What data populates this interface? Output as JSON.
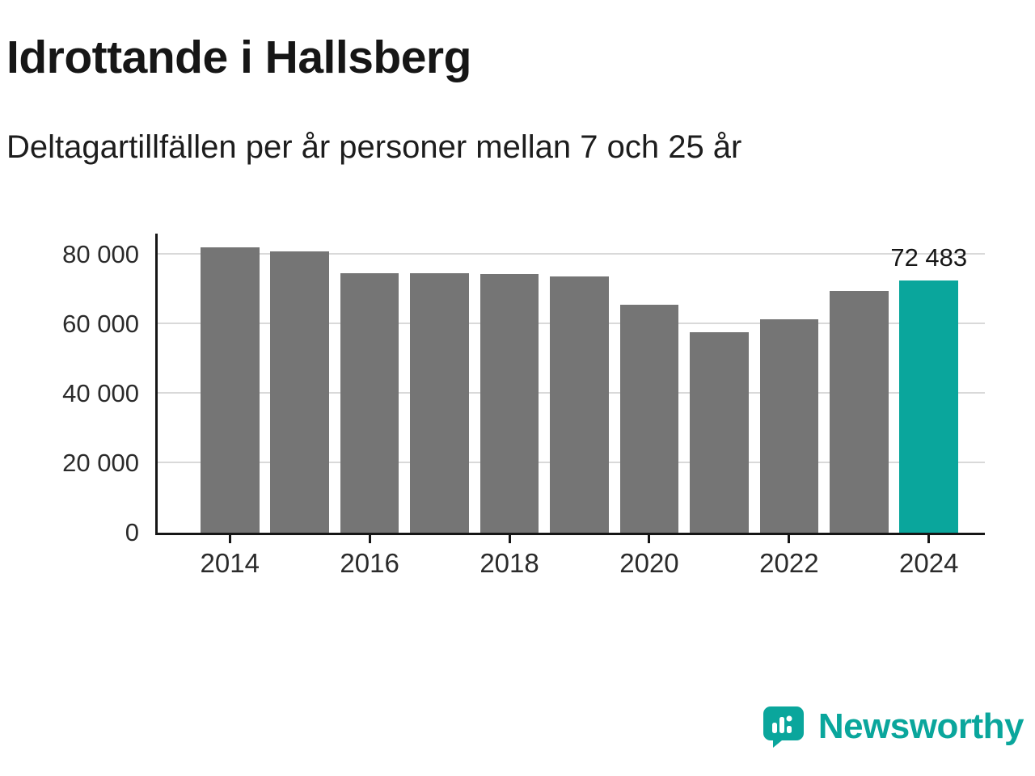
{
  "title": "Idrottande i Hallsberg",
  "subtitle": "Deltagartillfällen per år personer mellan 7 och 25 år",
  "chart_data": {
    "type": "bar",
    "categories": [
      "2014",
      "2015",
      "2016",
      "2017",
      "2018",
      "2019",
      "2020",
      "2021",
      "2022",
      "2023",
      "2024"
    ],
    "values": [
      82000,
      80900,
      74700,
      74600,
      74300,
      73600,
      65500,
      57600,
      61400,
      69500,
      72483
    ],
    "title": "Idrottande i Hallsberg",
    "subtitle": "Deltagartillfällen per år personer mellan 7 och 25 år",
    "xlabel": "",
    "ylabel": "",
    "ylim": [
      0,
      86000
    ],
    "grid": true,
    "legend": "none",
    "highlight_index": 10,
    "highlight_value_label": "72 483",
    "y_ticks": [
      {
        "value": 0,
        "label": "0"
      },
      {
        "value": 20000,
        "label": "20 000"
      },
      {
        "value": 40000,
        "label": "40 000"
      },
      {
        "value": 60000,
        "label": "60 000"
      },
      {
        "value": 80000,
        "label": "80 000"
      }
    ],
    "x_ticks": [
      {
        "index": 0,
        "label": "2014"
      },
      {
        "index": 2,
        "label": "2016"
      },
      {
        "index": 4,
        "label": "2018"
      },
      {
        "index": 6,
        "label": "2020"
      },
      {
        "index": 8,
        "label": "2022"
      },
      {
        "index": 10,
        "label": "2024"
      }
    ]
  },
  "colors": {
    "bar_gray": "#757575",
    "accent_teal": "#0aa69c",
    "grid_gray": "#d9d9d9",
    "axis_black": "#161616"
  },
  "footer": {
    "brand": "Newsworthy"
  }
}
